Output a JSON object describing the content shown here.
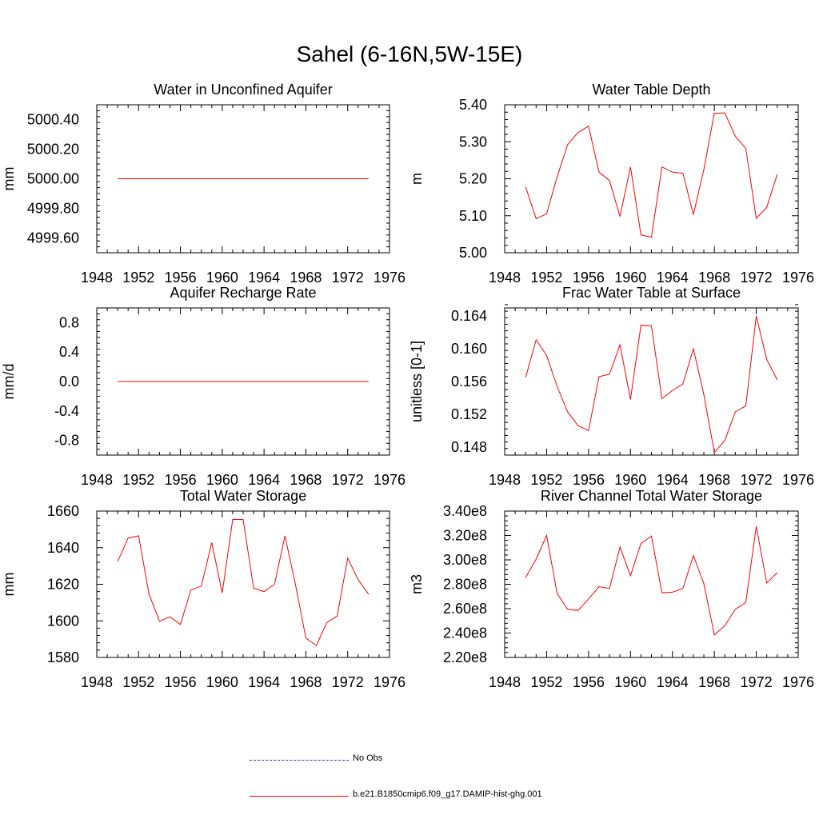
{
  "title": "Sahel (6-16N,5W-15E)",
  "series_color": "#ff0000",
  "obs_color": "#3333cc",
  "legend": [
    {
      "label": "No Obs",
      "style": "dashed",
      "color": "#3333cc"
    },
    {
      "label": "b.e21.B1850cmip6.f09_g17.DAMIP-hist-ghg.001",
      "style": "solid",
      "color": "#ff0000"
    }
  ],
  "chart_data": [
    {
      "type": "line",
      "title": "Water in Unconfined Aquifer",
      "ylabel": "mm",
      "xlim": [
        1948,
        1976
      ],
      "xticks": [
        "1948",
        "1952",
        "1956",
        "1960",
        "1964",
        "1968",
        "1972",
        "1976"
      ],
      "ylim": [
        4999.5,
        5000.5
      ],
      "yticks": [
        "4999.60",
        "4999.80",
        "5000.00",
        "5000.20",
        "5000.40"
      ],
      "x": [
        1950,
        1951,
        1952,
        1953,
        1954,
        1955,
        1956,
        1957,
        1958,
        1959,
        1960,
        1961,
        1962,
        1963,
        1964,
        1965,
        1966,
        1967,
        1968,
        1969,
        1970,
        1971,
        1972,
        1973,
        1974
      ],
      "series": [
        {
          "values": [
            5000,
            5000,
            5000,
            5000,
            5000,
            5000,
            5000,
            5000,
            5000,
            5000,
            5000,
            5000,
            5000,
            5000,
            5000,
            5000,
            5000,
            5000,
            5000,
            5000,
            5000,
            5000,
            5000,
            5000,
            5000
          ]
        }
      ]
    },
    {
      "type": "line",
      "title": "Water Table Depth",
      "ylabel": "m",
      "xlim": [
        1948,
        1976
      ],
      "xticks": [
        "1948",
        "1952",
        "1956",
        "1960",
        "1964",
        "1968",
        "1972",
        "1976"
      ],
      "ylim": [
        5.0,
        5.4
      ],
      "yticks": [
        "5.00",
        "5.10",
        "5.20",
        "5.30",
        "5.40"
      ],
      "x": [
        1950,
        1951,
        1952,
        1953,
        1954,
        1955,
        1956,
        1957,
        1958,
        1959,
        1960,
        1961,
        1962,
        1963,
        1964,
        1965,
        1966,
        1967,
        1968,
        1969,
        1970,
        1971,
        1972,
        1973,
        1974
      ],
      "series": [
        {
          "values": [
            5.178,
            5.092,
            5.105,
            5.205,
            5.292,
            5.325,
            5.342,
            5.218,
            5.195,
            5.098,
            5.232,
            5.048,
            5.042,
            5.232,
            5.218,
            5.215,
            5.103,
            5.225,
            5.377,
            5.378,
            5.315,
            5.282,
            5.093,
            5.123,
            5.212
          ]
        }
      ]
    },
    {
      "type": "line",
      "title": "Aquifer Recharge Rate",
      "ylabel": "mm/d",
      "xlim": [
        1948,
        1976
      ],
      "xticks": [
        "1948",
        "1952",
        "1956",
        "1960",
        "1964",
        "1968",
        "1972",
        "1976"
      ],
      "ylim": [
        -1.0,
        1.0
      ],
      "yticks": [
        "-0.8",
        "-0.4",
        "0.0",
        "0.4",
        "0.8"
      ],
      "x": [
        1950,
        1951,
        1952,
        1953,
        1954,
        1955,
        1956,
        1957,
        1958,
        1959,
        1960,
        1961,
        1962,
        1963,
        1964,
        1965,
        1966,
        1967,
        1968,
        1969,
        1970,
        1971,
        1972,
        1973,
        1974
      ],
      "series": [
        {
          "values": [
            0,
            0,
            0,
            0,
            0,
            0,
            0,
            0,
            0,
            0,
            0,
            0,
            0,
            0,
            0,
            0,
            0,
            0,
            0,
            0,
            0,
            0,
            0,
            0,
            0
          ]
        }
      ]
    },
    {
      "type": "line",
      "title": "Frac Water Table at Surface",
      "ylabel": "unitless [0-1]",
      "xlim": [
        1948,
        1976
      ],
      "xticks": [
        "1948",
        "1952",
        "1956",
        "1960",
        "1964",
        "1968",
        "1972",
        "1976"
      ],
      "ylim": [
        0.147,
        0.165
      ],
      "yticks": [
        "0.148",
        "0.152",
        "0.156",
        "0.160",
        "0.164"
      ],
      "x": [
        1950,
        1951,
        1952,
        1953,
        1954,
        1955,
        1956,
        1957,
        1958,
        1959,
        1960,
        1961,
        1962,
        1963,
        1964,
        1965,
        1966,
        1967,
        1968,
        1969,
        1970,
        1971,
        1972,
        1973,
        1974
      ],
      "series": [
        {
          "values": [
            0.1565,
            0.1611,
            0.1592,
            0.1554,
            0.1523,
            0.1506,
            0.15,
            0.1566,
            0.1569,
            0.1605,
            0.1538,
            0.1629,
            0.1628,
            0.1539,
            0.1549,
            0.1557,
            0.16,
            0.1544,
            0.1473,
            0.1488,
            0.1523,
            0.153,
            0.164,
            0.1587,
            0.1562
          ]
        }
      ]
    },
    {
      "type": "line",
      "title": "Total Water Storage",
      "ylabel": "mm",
      "xlim": [
        1948,
        1976
      ],
      "xticks": [
        "1948",
        "1952",
        "1956",
        "1960",
        "1964",
        "1968",
        "1972",
        "1976"
      ],
      "ylim": [
        1580,
        1660
      ],
      "yticks": [
        "1580",
        "1600",
        "1620",
        "1640",
        "1660"
      ],
      "x": [
        1950,
        1951,
        1952,
        1953,
        1954,
        1955,
        1956,
        1957,
        1958,
        1959,
        1960,
        1961,
        1962,
        1963,
        1964,
        1965,
        1966,
        1967,
        1968,
        1969,
        1970,
        1971,
        1972,
        1973,
        1974
      ],
      "series": [
        {
          "values": [
            1632.5,
            1645.2,
            1646.5,
            1614.5,
            1599.8,
            1602.2,
            1598.0,
            1616.8,
            1619.0,
            1642.8,
            1615.2,
            1655.4,
            1655.4,
            1617.8,
            1616.0,
            1620.0,
            1646.4,
            1620.0,
            1590.6,
            1586.5,
            1599.0,
            1602.7,
            1634.3,
            1622.5,
            1614.5
          ]
        }
      ]
    },
    {
      "type": "line",
      "title": "River Channel Total Water Storage",
      "ylabel": "m3",
      "xlim": [
        1948,
        1976
      ],
      "xticks": [
        "1948",
        "1952",
        "1956",
        "1960",
        "1964",
        "1968",
        "1972",
        "1976"
      ],
      "ylim": [
        220000000.0,
        340000000.0
      ],
      "yticks": [
        "2.20e8",
        "2.40e8",
        "2.60e8",
        "2.80e8",
        "3.00e8",
        "3.20e8",
        "3.40e8"
      ],
      "x": [
        1950,
        1951,
        1952,
        1953,
        1954,
        1955,
        1956,
        1957,
        1958,
        1959,
        1960,
        1961,
        1962,
        1963,
        1964,
        1965,
        1966,
        1967,
        1968,
        1969,
        1970,
        1971,
        1972,
        1973,
        1974
      ],
      "series": [
        {
          "values": [
            285500000.0,
            300500000.0,
            320000000.0,
            272500000.0,
            259500000.0,
            258500000.0,
            268000000.0,
            278000000.0,
            276500000.0,
            310500000.0,
            287000000.0,
            313500000.0,
            319500000.0,
            273000000.0,
            273500000.0,
            276500000.0,
            303500000.0,
            280500000.0,
            238500000.0,
            246000000.0,
            259500000.0,
            265000000.0,
            327500000.0,
            281000000.0,
            289500000.0
          ]
        }
      ]
    }
  ]
}
